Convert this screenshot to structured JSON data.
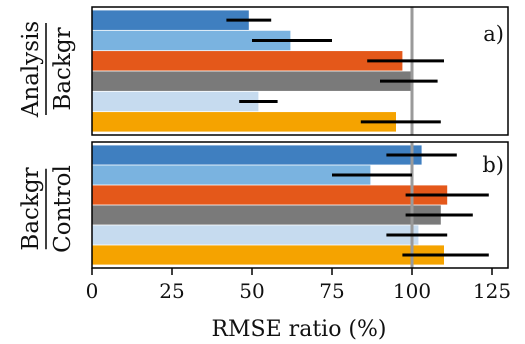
{
  "chart_data": {
    "type": "bar",
    "orientation": "horizontal",
    "xlabel": "RMSE ratio (%)",
    "xlim": [
      0,
      130
    ],
    "xticks": [
      "0",
      "25",
      "50",
      "75",
      "100",
      "125"
    ],
    "reference_line": 100,
    "grid": false,
    "colors": [
      "#3f7fc0",
      "#7ab3e0",
      "#e4581a",
      "#7a7a7a",
      "#c6dbef",
      "#f5a300"
    ],
    "panels": [
      {
        "label": "a)",
        "ylabel_numerator": "Analysis",
        "ylabel_denominator": "Backgr",
        "values": [
          49,
          62,
          97,
          100,
          52,
          95
        ],
        "errors": [
          [
            42,
            56
          ],
          [
            50,
            75
          ],
          [
            86,
            110
          ],
          [
            90,
            108
          ],
          [
            46,
            58
          ],
          [
            84,
            109
          ]
        ]
      },
      {
        "label": "b)",
        "ylabel_numerator": "Backgr",
        "ylabel_denominator": "Control",
        "values": [
          103,
          87,
          111,
          109,
          102,
          110
        ],
        "errors": [
          [
            92,
            114
          ],
          [
            75,
            100
          ],
          [
            98,
            124
          ],
          [
            98,
            119
          ],
          [
            92,
            111
          ],
          [
            97,
            124
          ]
        ]
      }
    ]
  }
}
